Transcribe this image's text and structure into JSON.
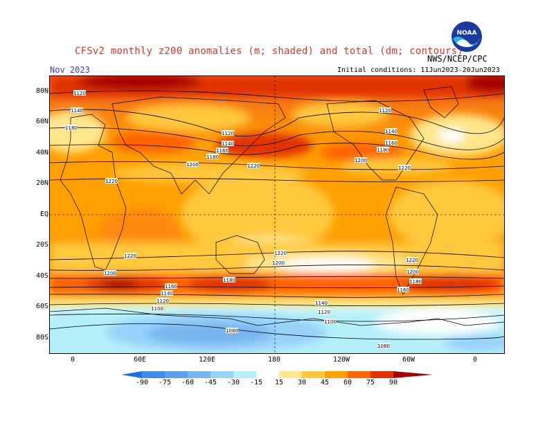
{
  "header": {
    "title": "CFSv2 monthly z200 anomalies (m; shaded) and total (dm; contours)",
    "agency": "NWS/NCEP/CPC",
    "month": "Nov 2023",
    "initial_conditions": "Initial conditions: 11Jun2023-20Jun2023",
    "logo_text": "NOAA"
  },
  "map": {
    "lat_labels": [
      "80N",
      "60N",
      "40N",
      "20N",
      "EQ",
      "20S",
      "40S",
      "60S",
      "80S"
    ],
    "lon_labels": [
      "0",
      "60E",
      "120E",
      "180",
      "120W",
      "60W",
      "0"
    ],
    "contour_labels": [
      "1120",
      "1140",
      "1160",
      "1180",
      "1200",
      "1220",
      "1080",
      "1100",
      "1120",
      "1140",
      "1160",
      "1180",
      "1200",
      "1220",
      "1120",
      "1140",
      "1160",
      "1180",
      "1200",
      "1220",
      "1220",
      "1200",
      "1160",
      "1140",
      "1120",
      "1100",
      "1080",
      "1220",
      "1200",
      "1180",
      "1160",
      "1140",
      "1120",
      "1100",
      "1080"
    ]
  },
  "colorbar": {
    "labels": [
      "-90",
      "-75",
      "-60",
      "-45",
      "-30",
      "-15",
      "15",
      "30",
      "45",
      "60",
      "75",
      "90"
    ],
    "colors": [
      "#1e6ee6",
      "#3c8cf0",
      "#5aa0f0",
      "#78b4f0",
      "#96d2fa",
      "#b4f0fa",
      "#ffffff",
      "#ffe68c",
      "#ffc83c",
      "#ffa000",
      "#ff6400",
      "#e13200",
      "#a50000"
    ]
  }
}
